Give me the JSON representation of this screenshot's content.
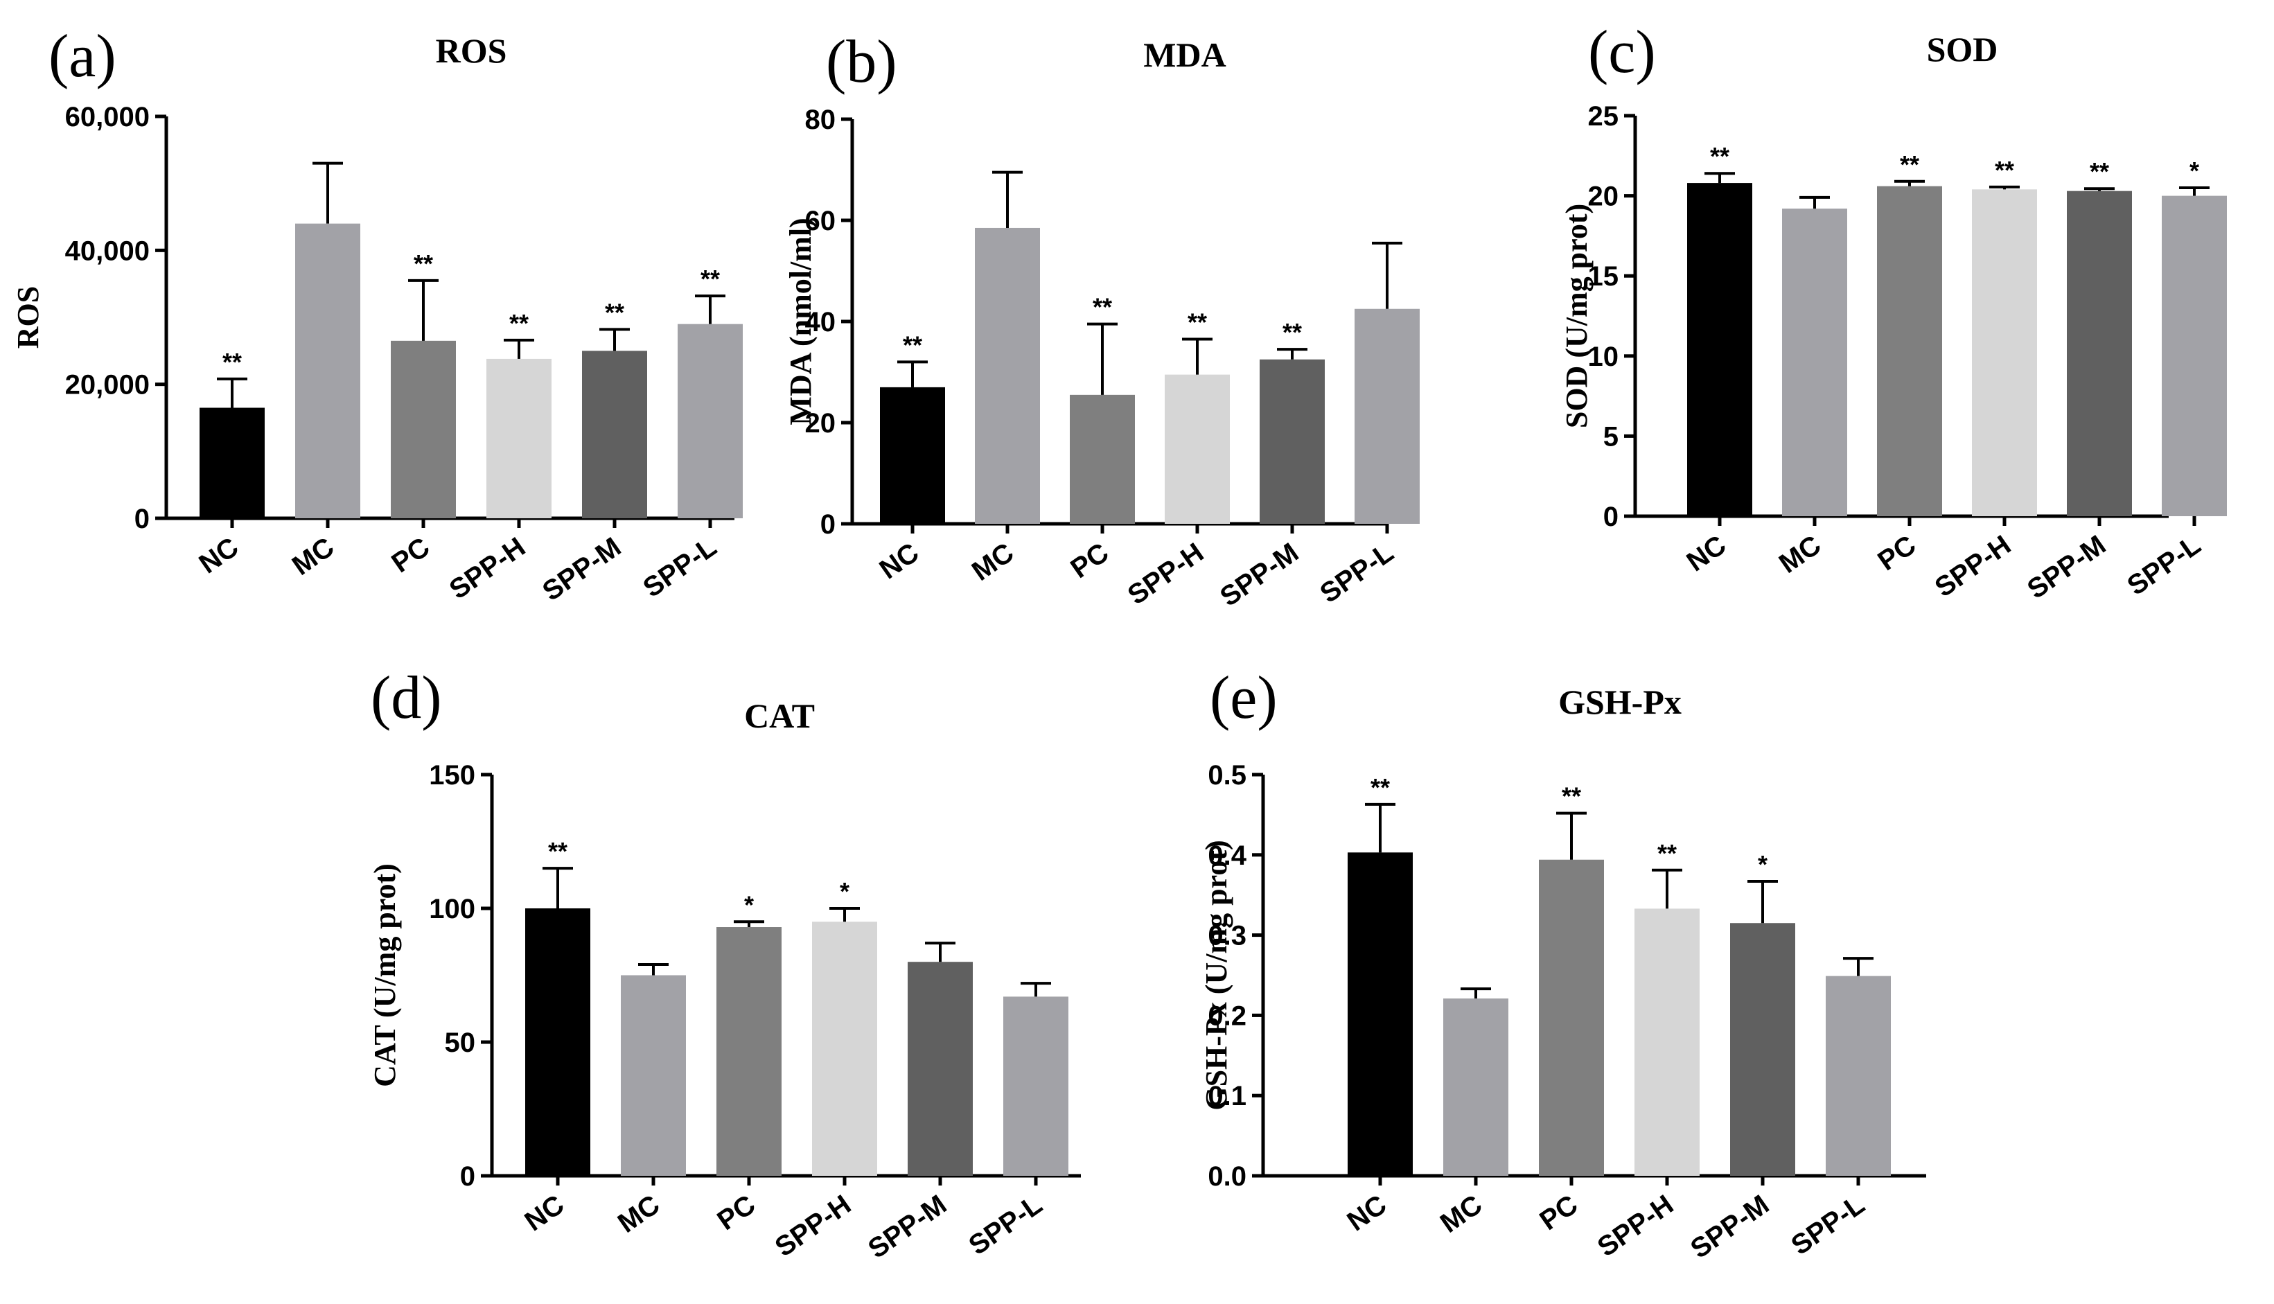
{
  "figure": {
    "panels": [
      "(a)",
      "(b)",
      "(c)",
      "(d)",
      "(e)"
    ]
  },
  "colors": {
    "bar_colors": [
      "#000000",
      "#a2a2a7",
      "#7f7f7f",
      "#d6d6d6",
      "#606060",
      "#a2a2a7"
    ],
    "axis": "#000000"
  },
  "chart_data": [
    {
      "type": "bar",
      "panel": "(a)",
      "title": "ROS",
      "ylabel": "ROS",
      "categories": [
        "NC",
        "MC",
        "PC",
        "SPP-H",
        "SPP-M",
        "SPP-L"
      ],
      "values": [
        16500,
        44000,
        26500,
        23800,
        25000,
        29000
      ],
      "errors": [
        4300,
        9000,
        9000,
        2800,
        3200,
        4200
      ],
      "significance": [
        "**",
        "",
        "**",
        "**",
        "**",
        "**"
      ],
      "ylim": [
        0,
        60000
      ],
      "yticks": [
        0,
        20000,
        40000,
        60000
      ],
      "ytick_labels": [
        "0",
        "20,000",
        "40,000",
        "60,000"
      ]
    },
    {
      "type": "bar",
      "panel": "(b)",
      "title": "MDA",
      "ylabel": "MDA (nmol/ml)",
      "categories": [
        "NC",
        "MC",
        "PC",
        "SPP-H",
        "SPP-M",
        "SPP-L"
      ],
      "values": [
        27,
        58.5,
        25.5,
        29.5,
        32.5,
        42.5
      ],
      "errors": [
        5,
        11,
        14,
        7,
        2,
        13
      ],
      "significance": [
        "**",
        "",
        "**",
        "**",
        "**",
        ""
      ],
      "ylim": [
        0,
        80
      ],
      "yticks": [
        0,
        20,
        40,
        60,
        80
      ],
      "ytick_labels": [
        "0",
        "20",
        "40",
        "60",
        "80"
      ]
    },
    {
      "type": "bar",
      "panel": "(c)",
      "title": "SOD",
      "ylabel": "SOD (U/mg prot)",
      "categories": [
        "NC",
        "MC",
        "PC",
        "SPP-H",
        "SPP-M",
        "SPP-L"
      ],
      "values": [
        20.8,
        19.2,
        20.6,
        20.4,
        20.3,
        20.0
      ],
      "errors": [
        0.6,
        0.7,
        0.3,
        0.15,
        0.15,
        0.5
      ],
      "significance": [
        "**",
        "",
        "**",
        "**",
        "**",
        "*"
      ],
      "ylim": [
        0,
        25
      ],
      "yticks": [
        0,
        5,
        10,
        15,
        20,
        25
      ],
      "ytick_labels": [
        "0",
        "5",
        "10",
        "15",
        "20",
        "25"
      ]
    },
    {
      "type": "bar",
      "panel": "(d)",
      "title": "CAT",
      "ylabel": "CAT (U/mg prot)",
      "categories": [
        "NC",
        "MC",
        "PC",
        "SPP-H",
        "SPP-M",
        "SPP-L"
      ],
      "values": [
        100,
        75,
        93,
        95,
        80,
        67
      ],
      "errors": [
        15,
        4,
        2,
        5,
        7,
        5
      ],
      "significance": [
        "**",
        "",
        "*",
        "*",
        "",
        ""
      ],
      "ylim": [
        0,
        150
      ],
      "yticks": [
        0,
        50,
        100,
        150
      ],
      "ytick_labels": [
        "0",
        "50",
        "100",
        "150"
      ]
    },
    {
      "type": "bar",
      "panel": "(e)",
      "title": "GSH-Px",
      "ylabel": "GSH-Px (U/mg prot)",
      "categories": [
        "NC",
        "MC",
        "PC",
        "SPP-H",
        "SPP-M",
        "SPP-L"
      ],
      "values": [
        0.403,
        0.221,
        0.394,
        0.333,
        0.315,
        0.249
      ],
      "errors": [
        0.06,
        0.012,
        0.058,
        0.048,
        0.052,
        0.022
      ],
      "significance": [
        "**",
        "",
        "**",
        "**",
        "*",
        ""
      ],
      "ylim": [
        0,
        0.5
      ],
      "yticks": [
        0,
        0.1,
        0.2,
        0.3,
        0.4,
        0.5
      ],
      "ytick_labels": [
        "0.0",
        "0.1",
        "0.2",
        "0.3",
        "0.4",
        "0.5"
      ]
    }
  ]
}
